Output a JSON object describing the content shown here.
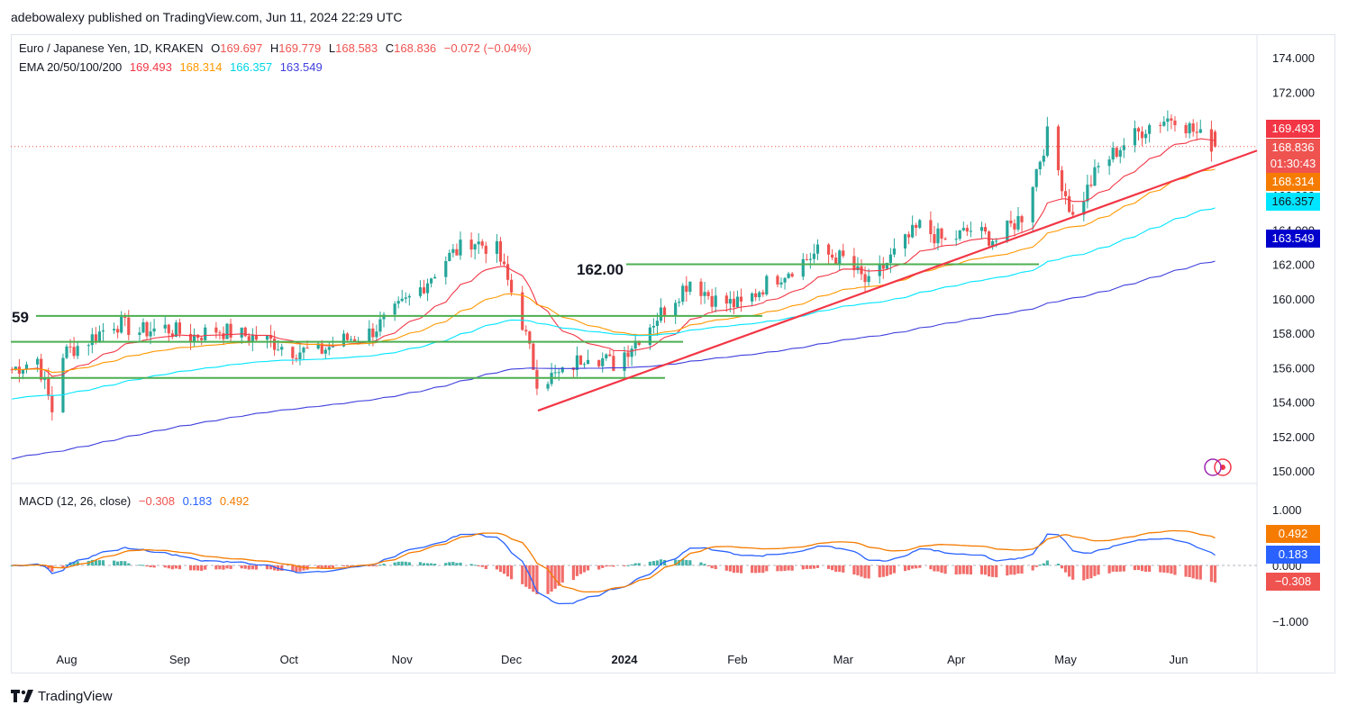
{
  "header": {
    "publisher_text": "adebowalexy published on TradingView.com, Jun 11, 2024 22:29 UTC"
  },
  "legend": {
    "symbol": "Euro / Japanese Yen, 1D, KRAKEN",
    "open_label": "O",
    "open": "169.697",
    "high_label": "H",
    "high": "169.779",
    "low_label": "L",
    "low": "168.583",
    "close_label": "C",
    "close": "168.836",
    "change": "−0.072 (−0.04%)",
    "ema_label": "EMA 20/50/100/200",
    "ema20": "169.493",
    "ema50": "168.314",
    "ema100": "166.357",
    "ema200": "163.549",
    "macd_label": "MACD (12, 26, close)",
    "macd_hist": "−0.308",
    "macd_line": "0.183",
    "macd_signal": "0.492"
  },
  "price_tags": {
    "ema20": "169.493",
    "close": "168.836",
    "countdown": "01:30:43",
    "ema50": "168.314",
    "ema100": "166.357",
    "ema200": "163.549"
  },
  "macd_tags": {
    "signal": "0.492",
    "macd": "0.183",
    "hist": "−0.308"
  },
  "annotations": {
    "level_162": "162.00",
    "level_159": "59"
  },
  "footer": {
    "brand": "TradingView"
  },
  "colors": {
    "up": "#26a69a",
    "down": "#ef5350",
    "ema20": "#f23645",
    "ema50": "#ff9800",
    "ema100": "#00e5ff",
    "ema200": "#3f3fdd",
    "support": "#4caf50",
    "trendline": "#f23645",
    "macd": "#2962ff",
    "signal": "#f57c00"
  },
  "chart_data": {
    "type": "candlestick",
    "title": "Euro / Japanese Yen, 1D, KRAKEN",
    "x_tick_labels": [
      "Aug",
      "Sep",
      "Oct",
      "Nov",
      "Dec",
      "2024",
      "Feb",
      "Mar",
      "Apr",
      "May",
      "Jun"
    ],
    "y_tick_labels": [
      "150.000",
      "152.000",
      "154.000",
      "156.000",
      "158.000",
      "160.000",
      "162.000",
      "164.000",
      "166.000",
      "168.000",
      "170.000",
      "172.000",
      "174.000"
    ],
    "ylim": [
      149.5,
      175.0
    ],
    "close_path": [
      [
        "2023-07-17",
        155.9
      ],
      [
        "2023-07-24",
        156.5
      ],
      [
        "2023-07-28",
        153.5
      ],
      [
        "2023-07-31",
        156.8
      ],
      [
        "2023-08-07",
        157.6
      ],
      [
        "2023-08-14",
        158.6
      ],
      [
        "2023-08-21",
        158.1
      ],
      [
        "2023-08-28",
        158.3
      ],
      [
        "2023-09-04",
        157.8
      ],
      [
        "2023-09-11",
        158.2
      ],
      [
        "2023-09-18",
        157.9
      ],
      [
        "2023-09-25",
        157.6
      ],
      [
        "2023-10-02",
        157.0
      ],
      [
        "2023-10-09",
        156.9
      ],
      [
        "2023-10-16",
        157.6
      ],
      [
        "2023-10-23",
        158.0
      ],
      [
        "2023-10-30",
        159.2
      ],
      [
        "2023-11-06",
        160.6
      ],
      [
        "2023-11-13",
        162.3
      ],
      [
        "2023-11-20",
        163.4
      ],
      [
        "2023-11-27",
        162.8
      ],
      [
        "2023-12-04",
        158.6
      ],
      [
        "2023-12-08",
        155.3
      ],
      [
        "2023-12-15",
        155.6
      ],
      [
        "2023-12-22",
        156.9
      ],
      [
        "2023-12-29",
        156.2
      ],
      [
        "2024-01-05",
        157.8
      ],
      [
        "2024-01-12",
        159.4
      ],
      [
        "2024-01-19",
        161.1
      ],
      [
        "2024-01-26",
        159.9
      ],
      [
        "2024-02-02",
        159.6
      ],
      [
        "2024-02-09",
        160.9
      ],
      [
        "2024-02-16",
        161.8
      ],
      [
        "2024-02-23",
        162.7
      ],
      [
        "2024-03-01",
        162.3
      ],
      [
        "2024-03-08",
        160.8
      ],
      [
        "2024-03-15",
        162.6
      ],
      [
        "2024-03-22",
        164.2
      ],
      [
        "2024-03-29",
        163.3
      ],
      [
        "2024-04-05",
        164.0
      ],
      [
        "2024-04-12",
        163.4
      ],
      [
        "2024-04-19",
        164.8
      ],
      [
        "2024-04-26",
        169.5
      ],
      [
        "2024-05-03",
        164.7
      ],
      [
        "2024-05-10",
        167.6
      ],
      [
        "2024-05-17",
        169.0
      ],
      [
        "2024-05-24",
        170.1
      ],
      [
        "2024-05-31",
        170.6
      ],
      [
        "2024-06-07",
        169.4
      ],
      [
        "2024-06-11",
        168.836
      ]
    ],
    "series": [
      {
        "name": "EMA 20",
        "last": 169.493
      },
      {
        "name": "EMA 50",
        "last": 168.314
      },
      {
        "name": "EMA 100",
        "last": 166.357
      },
      {
        "name": "EMA 200",
        "last": 163.549
      }
    ],
    "last_candle": {
      "open": 169.697,
      "high": 169.779,
      "low": 168.583,
      "close": 168.836,
      "change": -0.072,
      "change_pct": -0.04
    },
    "horizontal_levels": [
      159.0,
      157.5,
      155.4,
      162.0
    ],
    "macd_panel": {
      "y_tick_labels": [
        "1.000",
        "0.000",
        "−1.000"
      ],
      "macd": 0.183,
      "signal": 0.492,
      "histogram": -0.308
    }
  }
}
